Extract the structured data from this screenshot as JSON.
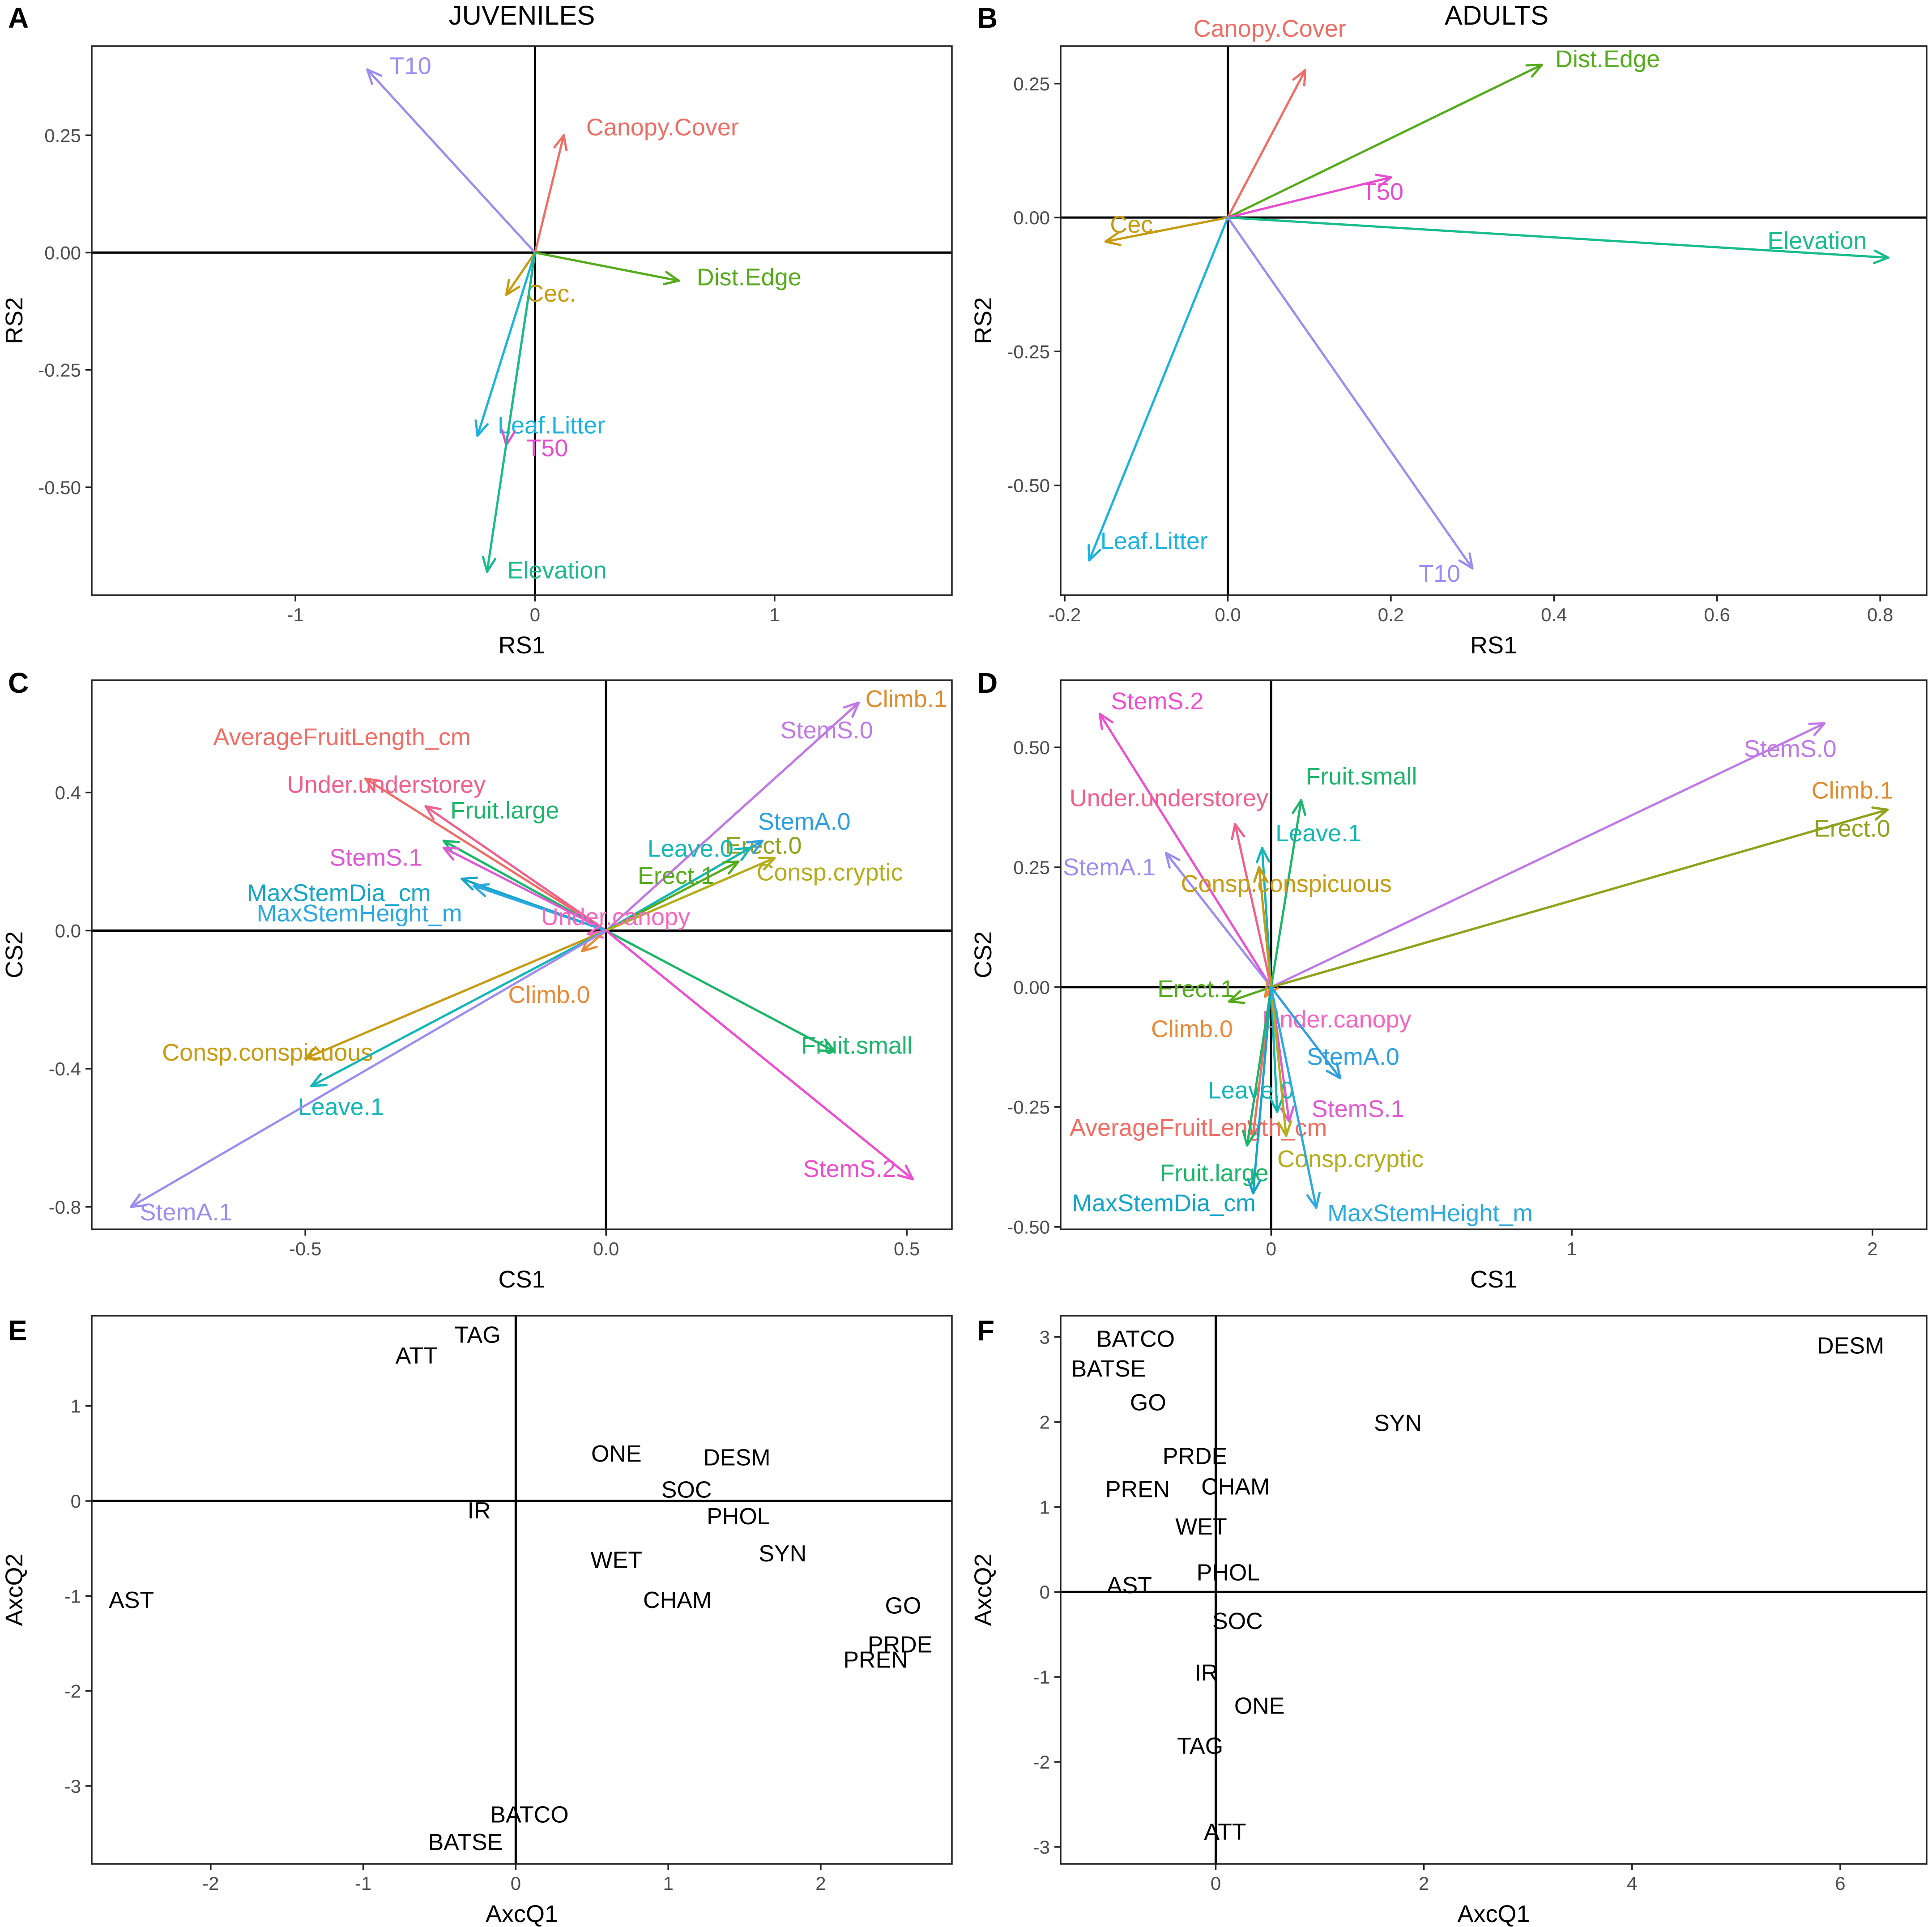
{
  "chart_data": [
    {
      "letter": "A",
      "title": "JUVENILES",
      "type": "biplot-arrows",
      "xlabel": "RS1",
      "ylabel": "RS2",
      "xlim": [
        -1.85,
        1.74
      ],
      "ylim": [
        -0.73,
        0.44
      ],
      "xticks": [
        -1,
        0,
        1
      ],
      "xtick_labels": [
        "-1",
        "0",
        "1"
      ],
      "yticks": [
        -0.5,
        -0.25,
        0,
        0.25
      ],
      "ytick_labels": [
        "-0.50",
        "-0.25",
        "0.00",
        "0.25"
      ],
      "vectors": [
        {
          "name": "T10",
          "x": -0.7,
          "y": 0.39,
          "color": "#9b8ef0"
        },
        {
          "name": "Canopy.Cover",
          "x": 0.12,
          "y": 0.25,
          "color": "#ee6e66"
        },
        {
          "name": "Dist.Edge",
          "x": 0.6,
          "y": -0.06,
          "color": "#55ab1b"
        },
        {
          "name": "Cec.",
          "x": -0.12,
          "y": -0.09,
          "color": "#c79b11"
        },
        {
          "name": "Leaf.Litter",
          "x": -0.24,
          "y": -0.39,
          "color": "#1ab3e0"
        },
        {
          "name": "T50",
          "x": -0.12,
          "y": -0.41,
          "color": "#e54ed0"
        },
        {
          "name": "Elevation",
          "x": -0.2,
          "y": -0.68,
          "color": "#19bc8c"
        }
      ]
    },
    {
      "letter": "B",
      "title": "ADULTS",
      "type": "biplot-arrows",
      "xlabel": "RS1",
      "ylabel": "RS2",
      "xlim": [
        -0.205,
        0.857
      ],
      "ylim": [
        -0.705,
        0.32
      ],
      "xticks": [
        -0.2,
        0,
        0.2,
        0.4,
        0.6,
        0.8
      ],
      "xtick_labels": [
        "-0.2",
        "0.0",
        "0.2",
        "0.4",
        "0.6",
        "0.8"
      ],
      "yticks": [
        -0.5,
        -0.25,
        0,
        0.25
      ],
      "ytick_labels": [
        "-0.50",
        "-0.25",
        "0.00",
        "0.25"
      ],
      "vectors": [
        {
          "name": "Canopy.Cover",
          "x": 0.095,
          "y": 0.275,
          "color": "#ee6e66"
        },
        {
          "name": "Dist.Edge",
          "x": 0.385,
          "y": 0.285,
          "color": "#55ab1b"
        },
        {
          "name": "T50",
          "x": 0.2,
          "y": 0.075,
          "color": "#e54ed0"
        },
        {
          "name": "Cec.",
          "x": -0.15,
          "y": -0.045,
          "color": "#c79b11"
        },
        {
          "name": "Elevation",
          "x": 0.81,
          "y": -0.075,
          "color": "#19bc8c"
        },
        {
          "name": "Leaf.Litter",
          "x": -0.17,
          "y": -0.64,
          "color": "#1ab3e0"
        },
        {
          "name": "T10",
          "x": 0.3,
          "y": -0.655,
          "color": "#9b8ef0"
        }
      ]
    },
    {
      "letter": "C",
      "type": "biplot-arrows",
      "xlabel": "CS1",
      "ylabel": "CS2",
      "xlim": [
        -0.855,
        0.575
      ],
      "ylim": [
        -0.865,
        0.725
      ],
      "xticks": [
        -0.5,
        0,
        0.5
      ],
      "xtick_labels": [
        "-0.5",
        "0.0",
        "0.5"
      ],
      "yticks": [
        -0.8,
        -0.4,
        0,
        0.4
      ],
      "ytick_labels": [
        "-0.8",
        "-0.4",
        "0.0",
        "0.4"
      ],
      "vectors": [
        {
          "name": "Climb.1",
          "x": 0.42,
          "y": 0.66,
          "color": "#de8c2e"
        },
        {
          "name": "StemS.0",
          "x": 0.42,
          "y": 0.66,
          "color": "#c07ae8"
        },
        {
          "name": "Erect.0",
          "x": 0.28,
          "y": 0.21,
          "color": "#8ea31c"
        },
        {
          "name": "StemA.0",
          "x": 0.26,
          "y": 0.26,
          "color": "#2e9fe0"
        },
        {
          "name": "Leave.0",
          "x": 0.24,
          "y": 0.24,
          "color": "#14b6b6"
        },
        {
          "name": "Erect.1",
          "x": 0.22,
          "y": 0.2,
          "color": "#55ab1b"
        },
        {
          "name": "Consp.cryptic",
          "x": 0.28,
          "y": 0.21,
          "color": "#b4ad1c"
        },
        {
          "name": "AverageFruitLength_cm",
          "x": -0.4,
          "y": 0.44,
          "color": "#ee6e66"
        },
        {
          "name": "Under.understorey",
          "x": -0.3,
          "y": 0.36,
          "color": "#f0608d"
        },
        {
          "name": "Fruit.large",
          "x": -0.27,
          "y": 0.26,
          "color": "#1cb56a"
        },
        {
          "name": "StemS.1",
          "x": -0.27,
          "y": 0.24,
          "color": "#de5bd3"
        },
        {
          "name": "MaxStemDia_cm",
          "x": -0.24,
          "y": 0.15,
          "color": "#14a5c8"
        },
        {
          "name": "MaxStemHeight_m",
          "x": -0.22,
          "y": 0.13,
          "color": "#2ba9e0"
        },
        {
          "name": "Under.canopy",
          "x": -0.03,
          "y": -0.01,
          "color": "#f566c0"
        },
        {
          "name": "Climb.0",
          "x": -0.04,
          "y": -0.06,
          "color": "#e88a3a"
        },
        {
          "name": "Consp.conspicuous",
          "x": -0.5,
          "y": -0.37,
          "color": "#c79b11"
        },
        {
          "name": "Leave.1",
          "x": -0.49,
          "y": -0.45,
          "color": "#14b6b6"
        },
        {
          "name": "StemA.1",
          "x": -0.79,
          "y": -0.8,
          "color": "#9b8ef0"
        },
        {
          "name": "Fruit.small",
          "x": 0.38,
          "y": -0.35,
          "color": "#1cb56a"
        },
        {
          "name": "StemS.2",
          "x": 0.51,
          "y": -0.72,
          "color": "#ee4fd0"
        }
      ]
    },
    {
      "letter": "D",
      "type": "biplot-arrows",
      "xlabel": "CS1",
      "ylabel": "CS2",
      "xlim": [
        -0.7,
        2.18
      ],
      "ylim": [
        -0.505,
        0.64
      ],
      "xticks": [
        0,
        1,
        2
      ],
      "xtick_labels": [
        "0",
        "1",
        "2"
      ],
      "yticks": [
        -0.5,
        -0.25,
        0,
        0.25,
        0.5
      ],
      "ytick_labels": [
        "-0.50",
        "-0.25",
        "0.00",
        "0.25",
        "0.50"
      ],
      "vectors": [
        {
          "name": "StemS.2",
          "x": -0.57,
          "y": 0.57,
          "color": "#ee4fd0"
        },
        {
          "name": "StemS.0",
          "x": 1.84,
          "y": 0.55,
          "color": "#c07ae8"
        },
        {
          "name": "Climb.1",
          "x": 2.05,
          "y": 0.37,
          "color": "#de8c2e"
        },
        {
          "name": "Erect.0",
          "x": 2.05,
          "y": 0.37,
          "color": "#8ea31c"
        },
        {
          "name": "Fruit.small",
          "x": 0.1,
          "y": 0.39,
          "color": "#1cb56a"
        },
        {
          "name": "Under.understorey",
          "x": -0.12,
          "y": 0.34,
          "color": "#f0608d"
        },
        {
          "name": "Leave.1",
          "x": -0.03,
          "y": 0.29,
          "color": "#14b6b6"
        },
        {
          "name": "StemA.1",
          "x": -0.35,
          "y": 0.28,
          "color": "#9b8ef0"
        },
        {
          "name": "Consp.conspicuous",
          "x": -0.04,
          "y": 0.25,
          "color": "#c79b11"
        },
        {
          "name": "Erect.1",
          "x": -0.14,
          "y": -0.03,
          "color": "#55ab1b"
        },
        {
          "name": "Climb.0",
          "x": -0.02,
          "y": -0.02,
          "color": "#e88a3a"
        },
        {
          "name": "Under.canopy",
          "x": 0.0,
          "y": 0.0,
          "color": "#f566c0"
        },
        {
          "name": "StemA.0",
          "x": 0.23,
          "y": -0.19,
          "color": "#2e9fe0"
        },
        {
          "name": "StemS.1",
          "x": 0.06,
          "y": -0.28,
          "color": "#de5bd3"
        },
        {
          "name": "Leave.0",
          "x": 0.02,
          "y": -0.26,
          "color": "#14b6b6"
        },
        {
          "name": "AverageFruitLength_cm",
          "x": -0.06,
          "y": -0.31,
          "color": "#ee6e66"
        },
        {
          "name": "Fruit.large",
          "x": -0.08,
          "y": -0.33,
          "color": "#1cb56a"
        },
        {
          "name": "Consp.cryptic",
          "x": 0.05,
          "y": -0.31,
          "color": "#b4ad1c"
        },
        {
          "name": "MaxStemDia_cm",
          "x": -0.06,
          "y": -0.43,
          "color": "#14a5c8"
        },
        {
          "name": "MaxStemHeight_m",
          "x": 0.15,
          "y": -0.46,
          "color": "#2ba9e0"
        }
      ]
    },
    {
      "letter": "E",
      "type": "scatter-labels",
      "xlabel": "AxcQ1",
      "ylabel": "AxcQ2",
      "xlim": [
        -2.78,
        2.86
      ],
      "ylim": [
        -3.82,
        1.95
      ],
      "xticks": [
        -2,
        -1,
        0,
        1,
        2
      ],
      "xtick_labels": [
        "-2",
        "-1",
        "0",
        "1",
        "2"
      ],
      "yticks": [
        -3,
        -2,
        -1,
        0,
        1
      ],
      "ytick_labels": [
        "-3",
        "-2",
        "-1",
        "0",
        "1"
      ],
      "points": [
        {
          "name": "TAG",
          "x": -0.25,
          "y": 1.75
        },
        {
          "name": "ATT",
          "x": -0.65,
          "y": 1.53
        },
        {
          "name": "ONE",
          "x": 0.66,
          "y": 0.5
        },
        {
          "name": "DESM",
          "x": 1.45,
          "y": 0.46
        },
        {
          "name": "SOC",
          "x": 1.12,
          "y": 0.12
        },
        {
          "name": "IR",
          "x": -0.24,
          "y": -0.1
        },
        {
          "name": "PHOL",
          "x": 1.46,
          "y": -0.16
        },
        {
          "name": "WET",
          "x": 0.66,
          "y": -0.62
        },
        {
          "name": "SYN",
          "x": 1.75,
          "y": -0.55
        },
        {
          "name": "AST",
          "x": -2.52,
          "y": -1.04
        },
        {
          "name": "CHAM",
          "x": 1.06,
          "y": -1.04
        },
        {
          "name": "GO",
          "x": 2.54,
          "y": -1.1
        },
        {
          "name": "PRDE",
          "x": 2.52,
          "y": -1.51
        },
        {
          "name": "PREN",
          "x": 2.36,
          "y": -1.67
        },
        {
          "name": "BATCO",
          "x": 0.09,
          "y": -3.3
        },
        {
          "name": "BATSE",
          "x": -0.33,
          "y": -3.59
        }
      ]
    },
    {
      "letter": "F",
      "type": "scatter-labels",
      "xlabel": "AxcQ1",
      "ylabel": "AxcQ2",
      "xlim": [
        -1.49,
        6.83
      ],
      "ylim": [
        -3.2,
        3.25
      ],
      "xticks": [
        0,
        2,
        4,
        6
      ],
      "xtick_labels": [
        "0",
        "2",
        "4",
        "6"
      ],
      "yticks": [
        -3,
        -2,
        -1,
        0,
        1,
        2,
        3
      ],
      "ytick_labels": [
        "-3",
        "-2",
        "-1",
        "0",
        "1",
        "2",
        "3"
      ],
      "points": [
        {
          "name": "BATCO",
          "x": -0.77,
          "y": 2.98
        },
        {
          "name": "DESM",
          "x": 6.1,
          "y": 2.9
        },
        {
          "name": "BATSE",
          "x": -1.03,
          "y": 2.63
        },
        {
          "name": "GO",
          "x": -0.65,
          "y": 2.23
        },
        {
          "name": "SYN",
          "x": 1.75,
          "y": 1.99
        },
        {
          "name": "PRDE",
          "x": -0.2,
          "y": 1.6
        },
        {
          "name": "PREN",
          "x": -0.75,
          "y": 1.21
        },
        {
          "name": "CHAM",
          "x": 0.19,
          "y": 1.24
        },
        {
          "name": "WET",
          "x": -0.14,
          "y": 0.77
        },
        {
          "name": "PHOL",
          "x": 0.12,
          "y": 0.23
        },
        {
          "name": "AST",
          "x": -0.83,
          "y": 0.08
        },
        {
          "name": "SOC",
          "x": 0.21,
          "y": -0.34
        },
        {
          "name": "IR",
          "x": -0.09,
          "y": -0.95
        },
        {
          "name": "ONE",
          "x": 0.42,
          "y": -1.34
        },
        {
          "name": "TAG",
          "x": -0.15,
          "y": -1.81
        },
        {
          "name": "ATT",
          "x": 0.09,
          "y": -2.82
        }
      ]
    }
  ]
}
